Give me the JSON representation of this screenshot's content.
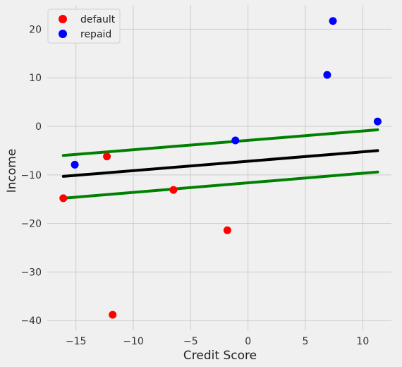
{
  "chart_data": {
    "type": "scatter",
    "xlabel": "Credit Score",
    "ylabel": "Income",
    "xlim": [
      -17.5,
      12.5
    ],
    "ylim": [
      -42.0,
      25.0
    ],
    "xticks": [
      -15,
      -10,
      -5,
      0,
      5,
      10
    ],
    "yticks": [
      20,
      10,
      0,
      -10,
      -20,
      -30,
      -40
    ],
    "tick_labels": {
      "x": [
        "−15",
        "−10",
        "−5",
        "0",
        "5",
        "10"
      ],
      "y": [
        "20",
        "10",
        "0",
        "−10",
        "−20",
        "−30",
        "−40"
      ]
    },
    "grid": true,
    "legend_position": "top-left",
    "series": [
      {
        "name": "default",
        "color": "#ff0000",
        "points": [
          {
            "x": -16.1,
            "y": -14.8
          },
          {
            "x": -12.3,
            "y": -6.2
          },
          {
            "x": -11.8,
            "y": -38.8
          },
          {
            "x": -6.5,
            "y": -13.1
          },
          {
            "x": -1.8,
            "y": -21.4
          }
        ]
      },
      {
        "name": "repaid",
        "color": "#0000ff",
        "points": [
          {
            "x": -15.1,
            "y": -7.9
          },
          {
            "x": -1.1,
            "y": -2.9
          },
          {
            "x": 6.9,
            "y": 10.6
          },
          {
            "x": 7.4,
            "y": 21.7
          },
          {
            "x": 11.3,
            "y": 1.0
          }
        ]
      }
    ],
    "lines": [
      {
        "color": "#000000",
        "x": [
          -16.1,
          11.3
        ],
        "y": [
          -10.3,
          -5.0
        ]
      },
      {
        "color": "#008000",
        "x": [
          -16.1,
          11.3
        ],
        "y": [
          -6.0,
          -0.7
        ]
      },
      {
        "color": "#008000",
        "x": [
          -16.1,
          11.3
        ],
        "y": [
          -14.8,
          -9.4
        ]
      }
    ]
  }
}
